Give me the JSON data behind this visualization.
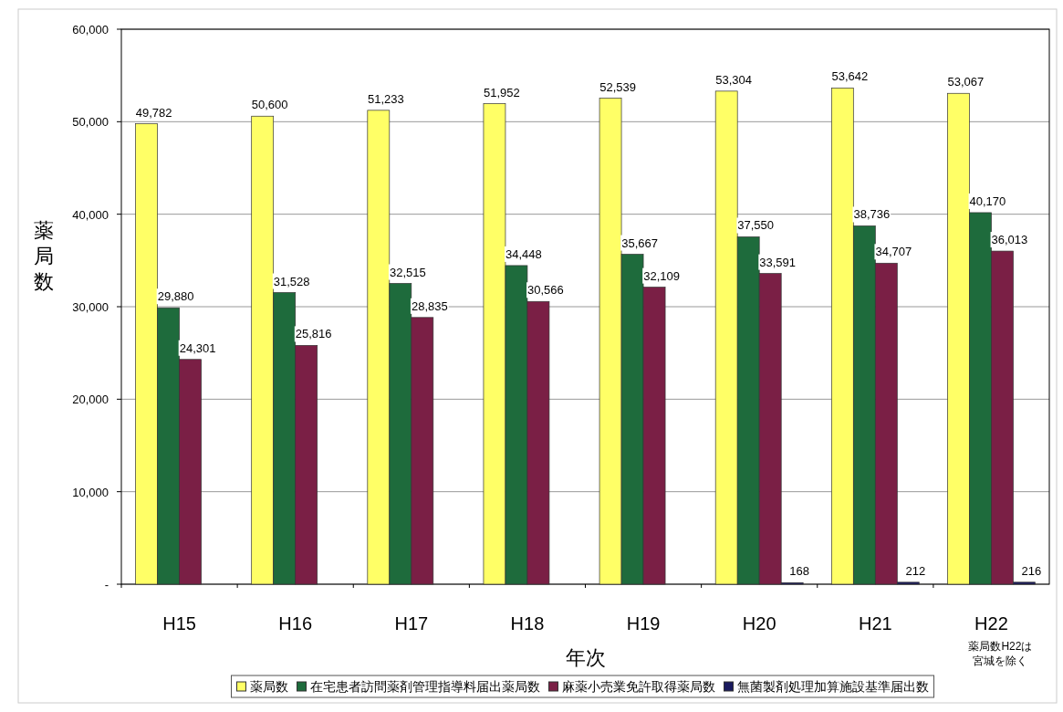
{
  "chart_data": {
    "type": "bar",
    "ylabel": "薬局数",
    "xlabel": "年次",
    "categories": [
      "H15",
      "H16",
      "H17",
      "H18",
      "H19",
      "H20",
      "H21",
      "H22"
    ],
    "series": [
      {
        "name": "薬局数",
        "color": "#ffff66",
        "values": [
          49782,
          50600,
          51233,
          51952,
          52539,
          53304,
          53642,
          53067
        ],
        "value_labels": [
          "49,782",
          "50,600",
          "51,233",
          "51,952",
          "52,539",
          "53,304",
          "53,642",
          "53,067"
        ]
      },
      {
        "name": "在宅患者訪問薬剤管理指導料届出薬局数",
        "color": "#1e6b3c",
        "values": [
          29880,
          31528,
          32515,
          34448,
          35667,
          37550,
          38736,
          40170
        ],
        "value_labels": [
          "29,880",
          "31,528",
          "32,515",
          "34,448",
          "35,667",
          "37,550",
          "38,736",
          "40,170"
        ]
      },
      {
        "name": "麻薬小売業免許取得薬局数",
        "color": "#7a1f45",
        "values": [
          24301,
          25816,
          28835,
          30566,
          32109,
          33591,
          34707,
          36013
        ],
        "value_labels": [
          "24,301",
          "25,816",
          "28,835",
          "30,566",
          "32,109",
          "33,591",
          "34,707",
          "36,013"
        ]
      },
      {
        "name": "無菌製剤処理加算施設基準届出数",
        "color": "#1a1a5e",
        "values": [
          null,
          null,
          null,
          null,
          null,
          168,
          212,
          216
        ],
        "value_labels": [
          null,
          null,
          null,
          null,
          null,
          "168",
          "212",
          "216"
        ]
      }
    ],
    "ylim": [
      0,
      60000
    ],
    "yticks": [
      {
        "value": 0,
        "label": "-"
      },
      {
        "value": 10000,
        "label": "10,000"
      },
      {
        "value": 20000,
        "label": "20,000"
      },
      {
        "value": 30000,
        "label": "30,000"
      },
      {
        "value": 40000,
        "label": "40,000"
      },
      {
        "value": 50000,
        "label": "50,000"
      },
      {
        "value": 60000,
        "label": "60,000"
      }
    ],
    "grid": "y",
    "legend": "bottom",
    "annotations": [
      "薬局数H22は",
      "宮城を除く"
    ]
  }
}
